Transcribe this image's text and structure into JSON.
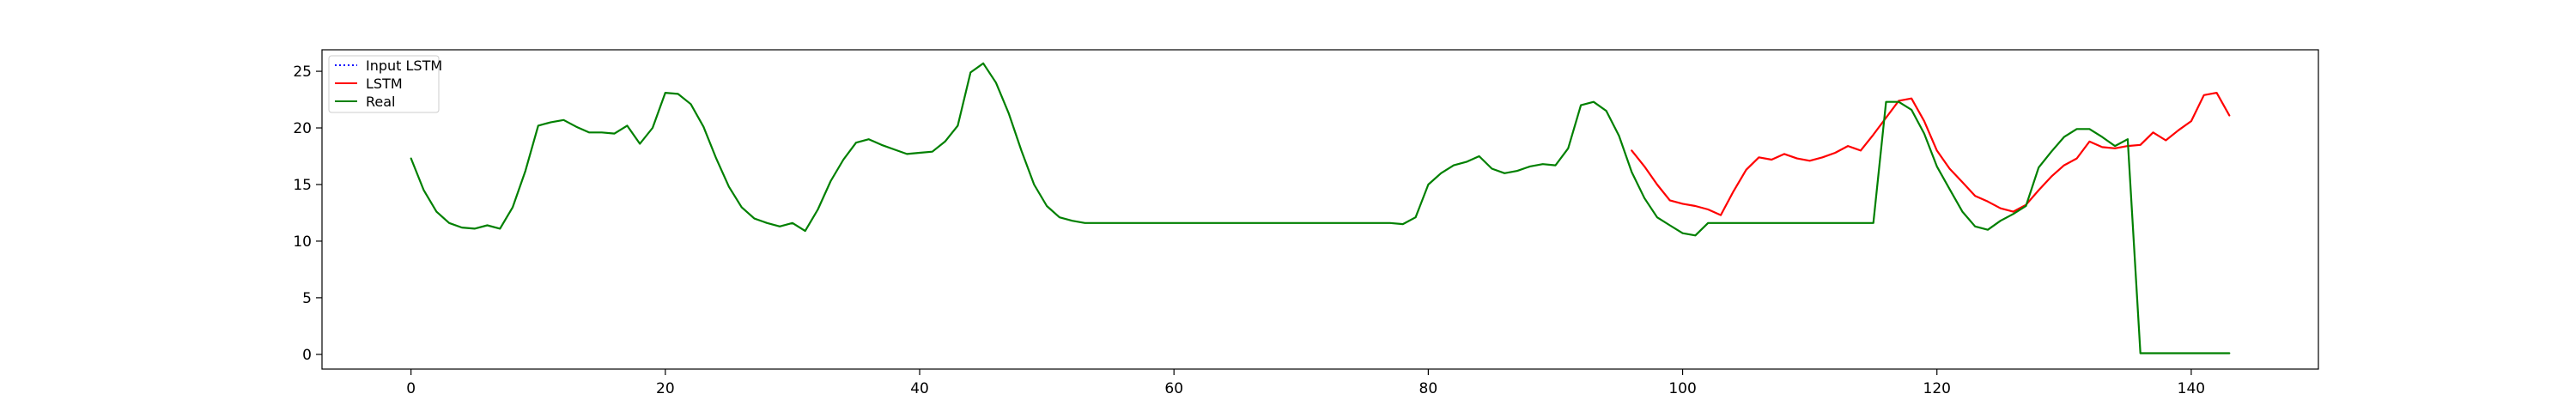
{
  "chart_data": {
    "type": "line",
    "title": "",
    "xlabel": "",
    "ylabel": "",
    "xlim": [
      -7,
      150
    ],
    "ylim": [
      -1.3,
      26.9
    ],
    "xticks": [
      0,
      20,
      40,
      60,
      80,
      100,
      120,
      140
    ],
    "yticks": [
      0,
      5,
      10,
      15,
      20,
      25
    ],
    "legend_position": "top-left",
    "series": [
      {
        "name": "Input LSTM",
        "color": "#0000ff",
        "linestyle": "dotted",
        "x": [],
        "y": []
      },
      {
        "name": "LSTM",
        "color": "#ff0000",
        "linestyle": "solid",
        "x": [
          96,
          97,
          98,
          99,
          100,
          101,
          102,
          103,
          104,
          105,
          106,
          107,
          108,
          109,
          110,
          111,
          112,
          113,
          114,
          115,
          116,
          117,
          118,
          119,
          120,
          121,
          122,
          123,
          124,
          125,
          126,
          127,
          128,
          129,
          130,
          131,
          132,
          133,
          134,
          135,
          136,
          137,
          138,
          139,
          140,
          141,
          142,
          143
        ],
        "y": [
          18,
          16.6,
          15,
          13.6,
          13.3,
          13.1,
          12.8,
          12.3,
          14.4,
          16.3,
          17.4,
          17.2,
          17.7,
          17.3,
          17.1,
          17.4,
          17.8,
          18.4,
          18.0,
          19.4,
          20.9,
          22.4,
          22.6,
          20.6,
          18.0,
          16.4,
          15.2,
          14.0,
          13.5,
          12.9,
          12.6,
          13.2,
          14.5,
          15.7,
          16.7,
          17.3,
          18.8,
          18.3,
          18.2,
          18.4,
          18.5,
          19.6,
          18.9,
          19.8,
          20.6,
          22.9,
          23.1,
          21.1
        ]
      },
      {
        "name": "Real",
        "color": "#008000",
        "linestyle": "solid",
        "x": [
          0,
          1,
          2,
          3,
          4,
          5,
          6,
          7,
          8,
          9,
          10,
          11,
          12,
          13,
          14,
          15,
          16,
          17,
          18,
          19,
          20,
          21,
          22,
          23,
          24,
          25,
          26,
          27,
          28,
          29,
          30,
          31,
          32,
          33,
          34,
          35,
          36,
          37,
          38,
          39,
          40,
          41,
          42,
          43,
          44,
          45,
          46,
          47,
          48,
          49,
          50,
          51,
          52,
          53,
          54,
          55,
          56,
          57,
          58,
          59,
          60,
          61,
          62,
          63,
          64,
          65,
          66,
          67,
          68,
          69,
          70,
          71,
          72,
          73,
          74,
          75,
          76,
          77,
          78,
          79,
          80,
          81,
          82,
          83,
          84,
          85,
          86,
          87,
          88,
          89,
          90,
          91,
          92,
          93,
          94,
          95,
          96,
          97,
          98,
          99,
          100,
          101,
          102,
          103,
          104,
          105,
          106,
          107,
          108,
          109,
          110,
          111,
          112,
          113,
          114,
          115,
          116,
          117,
          118,
          119,
          120,
          121,
          122,
          123,
          124,
          125,
          126,
          127,
          128,
          129,
          130,
          131,
          132,
          133,
          134,
          135,
          136,
          137,
          138,
          139,
          140,
          141,
          142,
          143
        ],
        "y": [
          17.3,
          14.5,
          12.6,
          11.6,
          11.2,
          11.1,
          11.4,
          11.1,
          13.0,
          16.2,
          20.2,
          20.5,
          20.7,
          20.1,
          19.6,
          19.6,
          19.5,
          20.2,
          18.6,
          20.0,
          23.1,
          23.0,
          22.1,
          20.1,
          17.3,
          14.8,
          13.0,
          12.0,
          11.6,
          11.3,
          11.6,
          10.9,
          12.8,
          15.3,
          17.2,
          18.7,
          19.0,
          18.5,
          18.1,
          17.7,
          17.8,
          17.9,
          18.8,
          20.2,
          24.9,
          25.7,
          24.0,
          21.3,
          18.0,
          15.0,
          13.1,
          12.1,
          11.8,
          11.6,
          11.6,
          11.6,
          11.6,
          11.6,
          11.6,
          11.6,
          11.6,
          11.6,
          11.6,
          11.6,
          11.6,
          11.6,
          11.6,
          11.6,
          11.6,
          11.6,
          11.6,
          11.6,
          11.6,
          11.6,
          11.6,
          11.6,
          11.6,
          11.6,
          11.5,
          12.1,
          15.0,
          16.0,
          16.7,
          17.0,
          17.5,
          16.4,
          16.0,
          16.2,
          16.6,
          16.8,
          16.7,
          18.2,
          22.0,
          22.3,
          21.5,
          19.3,
          16.1,
          13.8,
          12.1,
          11.4,
          10.7,
          10.5,
          11.6,
          11.6,
          11.6,
          11.6,
          11.6,
          11.6,
          11.6,
          11.6,
          11.6,
          11.6,
          11.6,
          11.6,
          11.6,
          11.6,
          22.3,
          22.3,
          21.6,
          19.5,
          16.6,
          14.6,
          12.6,
          11.3,
          11.0,
          11.8,
          12.4,
          13.1,
          16.5,
          17.9,
          19.2,
          19.9,
          19.9,
          19.2,
          18.4,
          19.0,
          0.1,
          0.1,
          0.1,
          0.1,
          0.1,
          0.1,
          0.1,
          0.1
        ]
      }
    ]
  }
}
